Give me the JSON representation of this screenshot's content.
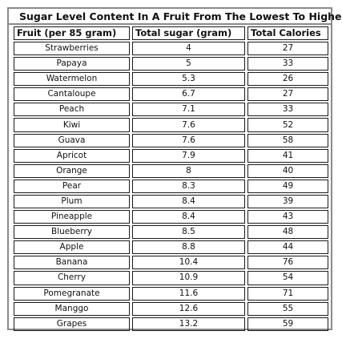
{
  "table": {
    "title": "Sugar Level Content In A Fruit From The Lowest To Highest",
    "headers": [
      "Fruit (per 85 gram)",
      "Total sugar (gram)",
      "Total Calories"
    ],
    "rows": [
      [
        "Strawberries",
        "4",
        "27"
      ],
      [
        "Papaya",
        "5",
        "33"
      ],
      [
        "Watermelon",
        "5.3",
        "26"
      ],
      [
        "Cantaloupe",
        "6.7",
        "27"
      ],
      [
        "Peach",
        "7.1",
        "33"
      ],
      [
        "Kiwi",
        "7.6",
        "52"
      ],
      [
        "Guava",
        "7.6",
        "58"
      ],
      [
        "Apricot",
        "7.9",
        "41"
      ],
      [
        "Orange",
        "8",
        "40"
      ],
      [
        "Pear",
        "8.3",
        "49"
      ],
      [
        "Plum",
        "8.4",
        "39"
      ],
      [
        "Pineapple",
        "8.4",
        "43"
      ],
      [
        "Blueberry",
        "8.5",
        "48"
      ],
      [
        "Apple",
        "8.8",
        "44"
      ],
      [
        "Banana",
        "10.4",
        "76"
      ],
      [
        "Cherry",
        "10.9",
        "54"
      ],
      [
        "Pomegranate",
        "11.6",
        "71"
      ],
      [
        "Manggo",
        "12.6",
        "55"
      ],
      [
        "Grapes",
        "13.2",
        "59"
      ]
    ]
  }
}
